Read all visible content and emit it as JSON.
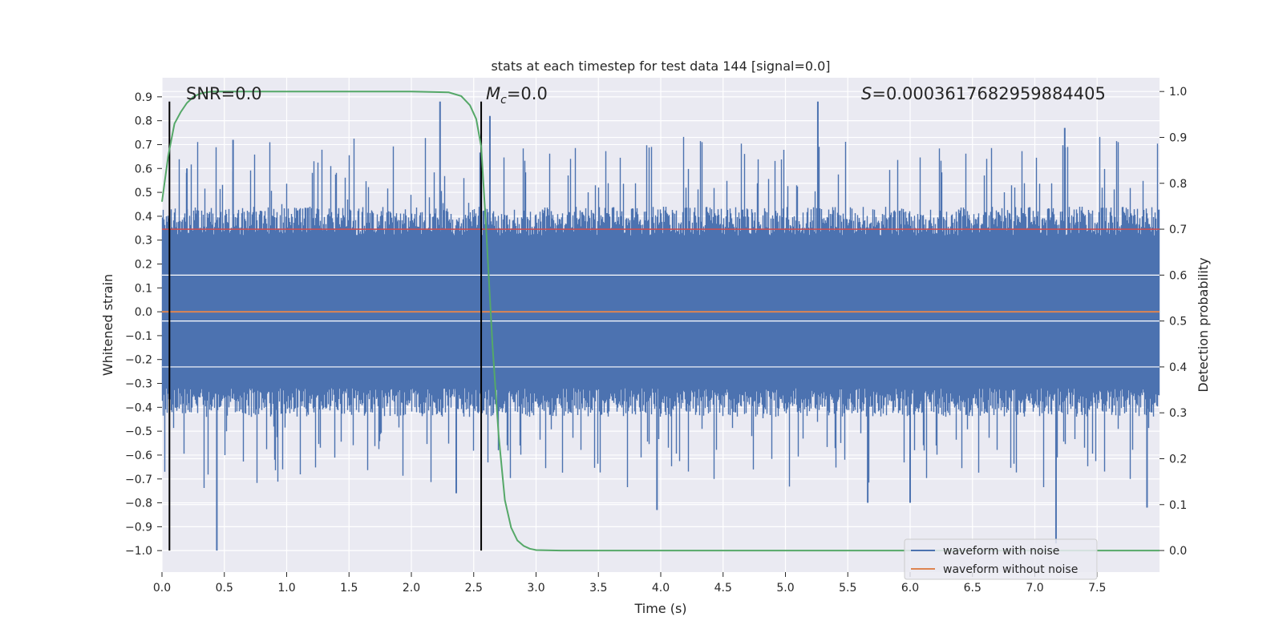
{
  "chart_data": {
    "type": "line",
    "title": "stats at each timestep for test data 144 [signal=0.0]",
    "xlabel": "Time (s)",
    "ylabel": "Whitened strain",
    "ylabel_right": "Detection probability",
    "xlim": [
      0.0,
      8.0
    ],
    "ylim": [
      -1.09,
      0.98
    ],
    "ylim_right": [
      -0.047,
      1.03
    ],
    "x_ticks": [
      0.0,
      0.5,
      1.0,
      1.5,
      2.0,
      2.5,
      3.0,
      3.5,
      4.0,
      4.5,
      5.0,
      5.5,
      6.0,
      6.5,
      7.0,
      7.5
    ],
    "x_tick_labels": [
      "0.0",
      "0.5",
      "1.0",
      "1.5",
      "2.0",
      "2.5",
      "3.0",
      "3.5",
      "4.0",
      "4.5",
      "5.0",
      "5.5",
      "6.0",
      "6.5",
      "7.0",
      "7.5"
    ],
    "y_ticks": [
      0.9,
      0.8,
      0.7,
      0.6,
      0.5,
      0.4,
      0.3,
      0.2,
      0.1,
      0.0,
      -0.1,
      -0.2,
      -0.3,
      -0.4,
      -0.5,
      -0.6,
      -0.7,
      -0.8,
      -0.9,
      -1.0
    ],
    "y_tick_labels": [
      "0.9",
      "0.8",
      "0.7",
      "0.6",
      "0.5",
      "0.4",
      "0.3",
      "0.2",
      "0.1",
      "0.0",
      "−0.1",
      "−0.2",
      "−0.3",
      "−0.4",
      "−0.5",
      "−0.6",
      "−0.7",
      "−0.8",
      "−0.9",
      "−1.0"
    ],
    "y_right_ticks": [
      1.0,
      0.9,
      0.8,
      0.7,
      0.6,
      0.5,
      0.4,
      0.3,
      0.2,
      0.1,
      0.0
    ],
    "y_right_tick_labels": [
      "1.0",
      "0.9",
      "0.8",
      "0.7",
      "0.6",
      "0.5",
      "0.4",
      "0.3",
      "0.2",
      "0.1",
      "0.0"
    ],
    "annotations": {
      "snr": "SNR=0.0",
      "mc_symbol": "M",
      "mc_sub": "c",
      "mc_value": "=0.0",
      "s_symbol": "S",
      "s_value": "=0.0003617682959884405"
    },
    "vertical_lines_x": [
      0.06,
      2.56
    ],
    "threshold_line": {
      "y": 0.7,
      "color": "#c44e52"
    },
    "noisy_waveform": {
      "name": "waveform with noise",
      "color": "#4c72b0",
      "samples": 4096,
      "envelope_typical": 0.45,
      "peaks": [
        {
          "t": 0.2,
          "v": 0.6
        },
        {
          "t": 0.44,
          "v": -1.0
        },
        {
          "t": 0.57,
          "v": 0.72
        },
        {
          "t": 2.23,
          "v": 0.88
        },
        {
          "t": 2.36,
          "v": -0.76
        },
        {
          "t": 2.63,
          "v": 0.82
        },
        {
          "t": 3.97,
          "v": -0.83
        },
        {
          "t": 5.26,
          "v": 0.88
        },
        {
          "t": 5.66,
          "v": -0.8
        },
        {
          "t": 6.0,
          "v": -0.8
        },
        {
          "t": 7.17,
          "v": -0.97
        },
        {
          "t": 7.24,
          "v": 0.77
        },
        {
          "t": 7.9,
          "v": -0.82
        }
      ],
      "color_hex": "#4c72b0"
    },
    "clean_waveform": {
      "name": "waveform without noise",
      "color": "#dd8452",
      "value": 0.0
    },
    "detection_probability": {
      "name": "Detection probability",
      "color": "#55a868",
      "x": [
        0.0,
        0.05,
        0.1,
        0.15,
        0.2,
        0.25,
        0.3,
        0.35,
        0.4,
        0.5,
        0.7,
        1.0,
        1.5,
        2.0,
        2.3,
        2.4,
        2.47,
        2.52,
        2.56,
        2.6,
        2.65,
        2.7,
        2.75,
        2.8,
        2.85,
        2.9,
        2.95,
        3.0,
        3.2,
        3.5,
        4.0,
        8.0
      ],
      "y": [
        0.76,
        0.86,
        0.93,
        0.955,
        0.975,
        0.988,
        0.995,
        0.998,
        1.0,
        1.0,
        1.0,
        1.0,
        1.0,
        1.0,
        0.998,
        0.99,
        0.97,
        0.94,
        0.88,
        0.7,
        0.45,
        0.25,
        0.11,
        0.05,
        0.022,
        0.01,
        0.004,
        0.001,
        0.0,
        0.0,
        0.0,
        0.0
      ]
    },
    "legend": {
      "placement": "bottom-right",
      "entries": [
        {
          "label": "waveform with noise",
          "color": "#4c72b0"
        },
        {
          "label": "waveform without noise",
          "color": "#dd8452"
        }
      ]
    },
    "background": "#eaeaf2",
    "grid": true
  }
}
